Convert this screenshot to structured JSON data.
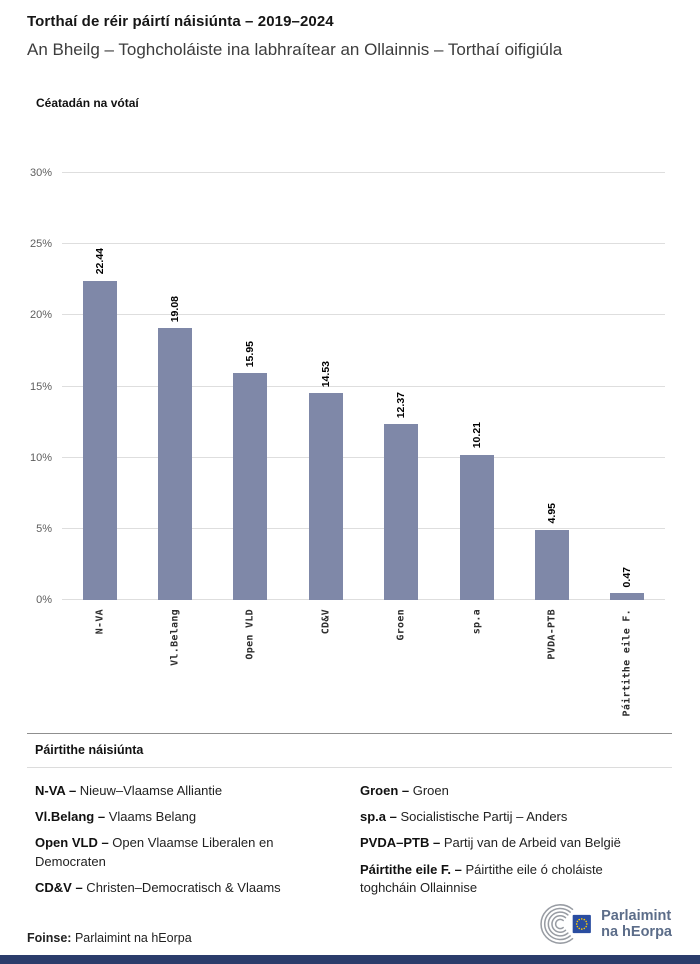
{
  "header": {
    "title": "Torthaí de réir páirtí náisiúnta – 2019–2024",
    "subtitle": "An Bheilg – Toghcholáiste ina labhraítear an Ollainnis – Torthaí oifigiúla"
  },
  "chart_data": {
    "type": "bar",
    "title": "Torthaí de réir páirtí náisiúnta – 2019–2024",
    "ylabel": "Céatadán na vótaí",
    "xlabel": "",
    "categories": [
      "N-VA",
      "Vl.Belang",
      "Open VLD",
      "CD&V",
      "Groen",
      "sp.a",
      "PVDA-PTB",
      "Páirtithe eile F."
    ],
    "values": [
      22.44,
      19.08,
      15.95,
      14.53,
      12.37,
      10.21,
      4.95,
      0.47
    ],
    "value_labels": [
      "22.44",
      "19.08",
      "15.95",
      "14.53",
      "12.37",
      "10.21",
      "4.95",
      "0.47"
    ],
    "ylim": [
      0,
      30
    ],
    "ytick_step": 5,
    "ytick_labels": [
      "0%",
      "5%",
      "10%",
      "15%",
      "20%",
      "25%",
      "30%"
    ],
    "grid": true,
    "legend_position": "none",
    "bar_color": "#7f88a8"
  },
  "legend": {
    "heading": "Páirtithe náisiúnta",
    "columns": [
      [
        {
          "term": "N-VA –",
          "desc": "Nieuw–Vlaamse Alliantie"
        },
        {
          "term": "Vl.Belang –",
          "desc": "Vlaams Belang"
        },
        {
          "term": "Open VLD –",
          "desc": "Open Vlaamse Liberalen en Democraten"
        },
        {
          "term": "CD&V –",
          "desc": "Christen–Democratisch & Vlaams"
        }
      ],
      [
        {
          "term": "Groen –",
          "desc": "Groen"
        },
        {
          "term": "sp.a –",
          "desc": "Socialistische Partij – Anders"
        },
        {
          "term": "PVDA–PTB –",
          "desc": "Partij van de Arbeid van België"
        },
        {
          "term": "Páirtithe eile F. –",
          "desc": "Páirtithe eile ó choláiste toghcháin Ollainnise"
        }
      ]
    ]
  },
  "footer": {
    "source_label": "Foinse:",
    "source_value": "Parlaimint na hEorpa",
    "logo_line1": "Parlaimint",
    "logo_line2": "na hEorpa"
  },
  "colors": {
    "bar": "#7f88a8",
    "footer_bar": "#2b3c6b",
    "logo_text": "#5c6d89",
    "eu_flag_blue": "#2a4da0",
    "eu_star_yellow": "#ffcc00"
  }
}
